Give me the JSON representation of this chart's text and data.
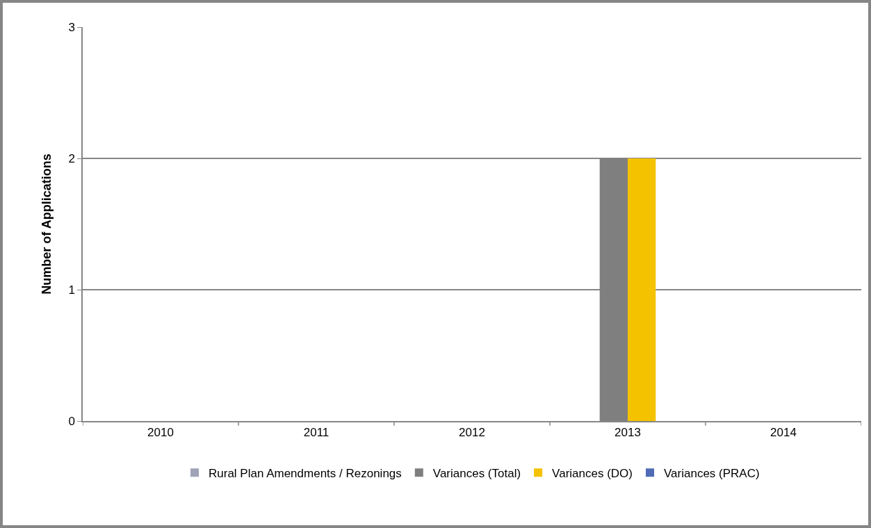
{
  "chart_data": {
    "type": "bar",
    "ylabel": "Number of Applications",
    "categories": [
      "2010",
      "2011",
      "2012",
      "2013",
      "2014"
    ],
    "series": [
      {
        "name": "Rural Plan Amendments / Rezonings",
        "color": "#9fa3b8",
        "values": [
          0,
          0,
          0,
          0,
          0
        ]
      },
      {
        "name": "Variances (Total)",
        "color": "#7f7f7f",
        "values": [
          0,
          0,
          0,
          2,
          0
        ]
      },
      {
        "name": "Variances (DO)",
        "color": "#f5c200",
        "values": [
          0,
          0,
          0,
          2,
          0
        ]
      },
      {
        "name": "Variances (PRAC)",
        "color": "#4f6bb5",
        "values": [
          0,
          0,
          0,
          0,
          0
        ]
      }
    ],
    "ylim": [
      0,
      3
    ],
    "yticks": [
      0,
      1,
      2,
      3
    ],
    "grid": "y",
    "legend": "bottom"
  }
}
